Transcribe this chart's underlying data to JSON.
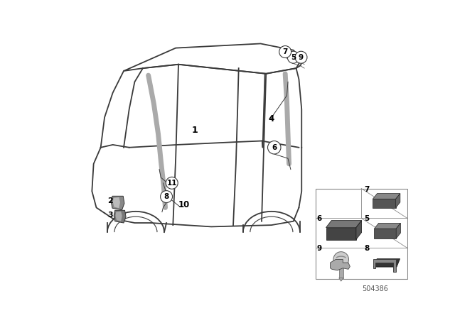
{
  "background_color": "#ffffff",
  "line_color": "#3a3a3a",
  "footer_number": "504386",
  "grid_border": "#aaaaaa",
  "drain_color": "#aaaaaa",
  "label_color": "#000000"
}
